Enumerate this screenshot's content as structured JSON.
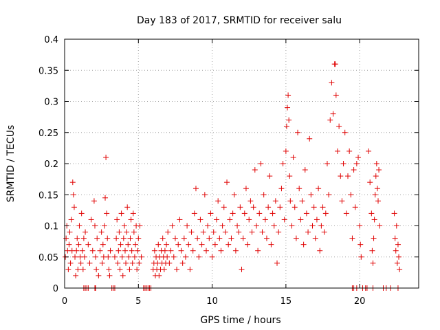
{
  "chart_data": {
    "type": "scatter",
    "title": "Day 183 of 2017, SRMTID for receiver salu",
    "xlabel": "GPS time / hours",
    "ylabel": "SRMTID / TECUs",
    "xlim": [
      0,
      24
    ],
    "ylim": [
      0,
      0.4
    ],
    "xticks": [
      0,
      5,
      10,
      15,
      20
    ],
    "xtick_labels": [
      "0",
      "5",
      "10",
      "15",
      "20"
    ],
    "yticks": [
      0,
      0.05,
      0.1,
      0.15,
      0.2,
      0.25,
      0.3,
      0.35,
      0.4
    ],
    "ytick_labels": [
      "0",
      "0.05",
      "0.1",
      "0.15",
      "0.2",
      "0.25",
      "0.3",
      "0.35",
      "0.4"
    ],
    "grid": true,
    "marker": "+",
    "color": "#e00000",
    "series": [
      {
        "name": "SRMTID",
        "points": [
          [
            0.05,
            0.05
          ],
          [
            0.1,
            0.08
          ],
          [
            0.15,
            0.1
          ],
          [
            0.2,
            0.06
          ],
          [
            0.25,
            0.03
          ],
          [
            0.3,
            0.07
          ],
          [
            0.35,
            0.09
          ],
          [
            0.4,
            0.04
          ],
          [
            0.45,
            0.11
          ],
          [
            0.5,
            0.06
          ],
          [
            0.55,
            0.17
          ],
          [
            0.6,
            0.15
          ],
          [
            0.65,
            0.13
          ],
          [
            0.7,
            0.05
          ],
          [
            0.75,
            0.02
          ],
          [
            0.8,
            0.06
          ],
          [
            0.85,
            0.08
          ],
          [
            0.9,
            0.03
          ],
          [
            0.95,
            0.07
          ],
          [
            1.0,
            0.1
          ],
          [
            1.05,
            0.05
          ],
          [
            1.1,
            0.04
          ],
          [
            1.15,
            0.12
          ],
          [
            1.2,
            0.06
          ],
          [
            1.25,
            0.03
          ],
          [
            1.3,
            0.08
          ],
          [
            1.35,
            0.05
          ],
          [
            1.4,
            0.09
          ],
          [
            1.6,
            0.07
          ],
          [
            1.7,
            0.04
          ],
          [
            1.8,
            0.11
          ],
          [
            1.9,
            0.06
          ],
          [
            2.0,
            0.14
          ],
          [
            2.05,
            0.1
          ],
          [
            2.1,
            0.05
          ],
          [
            2.15,
            0.03
          ],
          [
            2.2,
            0.08
          ],
          [
            2.3,
            0.02
          ],
          [
            2.4,
            0.06
          ],
          [
            2.5,
            0.09
          ],
          [
            2.55,
            0.04
          ],
          [
            2.6,
            0.07
          ],
          [
            2.65,
            0.05
          ],
          [
            2.7,
            0.1
          ],
          [
            2.75,
            0.145
          ],
          [
            2.8,
            0.21
          ],
          [
            2.85,
            0.12
          ],
          [
            2.9,
            0.08
          ],
          [
            2.95,
            0.05
          ],
          [
            3.0,
            0.03
          ],
          [
            3.05,
            0.02
          ],
          [
            3.1,
            0.06
          ],
          [
            3.4,
            0.05
          ],
          [
            3.5,
            0.08
          ],
          [
            3.55,
            0.11
          ],
          [
            3.6,
            0.04
          ],
          [
            3.65,
            0.06
          ],
          [
            3.7,
            0.09
          ],
          [
            3.75,
            0.03
          ],
          [
            3.8,
            0.07
          ],
          [
            3.85,
            0.12
          ],
          [
            3.9,
            0.05
          ],
          [
            3.95,
            0.02
          ],
          [
            4.0,
            0.08
          ],
          [
            4.05,
            0.1
          ],
          [
            4.1,
            0.06
          ],
          [
            4.15,
            0.04
          ],
          [
            4.2,
            0.09
          ],
          [
            4.25,
            0.13
          ],
          [
            4.3,
            0.07
          ],
          [
            4.35,
            0.05
          ],
          [
            4.4,
            0.03
          ],
          [
            4.45,
            0.08
          ],
          [
            4.5,
            0.11
          ],
          [
            4.55,
            0.06
          ],
          [
            4.6,
            0.04
          ],
          [
            4.65,
            0.12
          ],
          [
            4.7,
            0.09
          ],
          [
            4.75,
            0.05
          ],
          [
            4.8,
            0.07
          ],
          [
            4.85,
            0.1
          ],
          [
            4.9,
            0.03
          ],
          [
            4.95,
            0.06
          ],
          [
            5.0,
            0.08
          ],
          [
            5.05,
            0.04
          ],
          [
            5.1,
            0.1
          ],
          [
            5.2,
            0.05
          ],
          [
            6.0,
            0.03
          ],
          [
            6.05,
            0.04
          ],
          [
            6.1,
            0.06
          ],
          [
            6.15,
            0.02
          ],
          [
            6.2,
            0.05
          ],
          [
            6.25,
            0.03
          ],
          [
            6.3,
            0.04
          ],
          [
            6.35,
            0.07
          ],
          [
            6.4,
            0.02
          ],
          [
            6.45,
            0.05
          ],
          [
            6.5,
            0.03
          ],
          [
            6.55,
            0.06
          ],
          [
            6.6,
            0.04
          ],
          [
            6.65,
            0.08
          ],
          [
            6.7,
            0.05
          ],
          [
            6.75,
            0.03
          ],
          [
            6.8,
            0.06
          ],
          [
            6.85,
            0.04
          ],
          [
            6.9,
            0.07
          ],
          [
            6.95,
            0.05
          ],
          [
            7.0,
            0.09
          ],
          [
            7.1,
            0.04
          ],
          [
            7.2,
            0.06
          ],
          [
            7.3,
            0.1
          ],
          [
            7.4,
            0.05
          ],
          [
            7.5,
            0.08
          ],
          [
            7.6,
            0.03
          ],
          [
            7.7,
            0.07
          ],
          [
            7.8,
            0.11
          ],
          [
            7.9,
            0.06
          ],
          [
            8.0,
            0.04
          ],
          [
            8.1,
            0.08
          ],
          [
            8.2,
            0.05
          ],
          [
            8.3,
            0.1
          ],
          [
            8.4,
            0.07
          ],
          [
            8.5,
            0.03
          ],
          [
            8.6,
            0.09
          ],
          [
            8.7,
            0.06
          ],
          [
            8.8,
            0.12
          ],
          [
            8.9,
            0.16
          ],
          [
            9.0,
            0.08
          ],
          [
            9.1,
            0.05
          ],
          [
            9.2,
            0.11
          ],
          [
            9.3,
            0.07
          ],
          [
            9.4,
            0.09
          ],
          [
            9.5,
            0.15
          ],
          [
            9.6,
            0.06
          ],
          [
            9.7,
            0.1
          ],
          [
            9.8,
            0.08
          ],
          [
            9.9,
            0.12
          ],
          [
            10.0,
            0.05
          ],
          [
            10.1,
            0.09
          ],
          [
            10.2,
            0.07
          ],
          [
            10.3,
            0.11
          ],
          [
            10.4,
            0.14
          ],
          [
            10.5,
            0.08
          ],
          [
            10.6,
            0.06
          ],
          [
            10.7,
            0.1
          ],
          [
            10.8,
            0.13
          ],
          [
            10.9,
            0.09
          ],
          [
            11.0,
            0.17
          ],
          [
            11.1,
            0.07
          ],
          [
            11.2,
            0.11
          ],
          [
            11.3,
            0.08
          ],
          [
            11.4,
            0.12
          ],
          [
            11.5,
            0.15
          ],
          [
            11.6,
            0.06
          ],
          [
            11.7,
            0.1
          ],
          [
            11.8,
            0.09
          ],
          [
            11.9,
            0.13
          ],
          [
            12.0,
            0.03
          ],
          [
            12.1,
            0.08
          ],
          [
            12.2,
            0.12
          ],
          [
            12.3,
            0.16
          ],
          [
            12.4,
            0.07
          ],
          [
            12.5,
            0.11
          ],
          [
            12.6,
            0.14
          ],
          [
            12.7,
            0.09
          ],
          [
            12.8,
            0.13
          ],
          [
            12.9,
            0.19
          ],
          [
            13.0,
            0.1
          ],
          [
            13.1,
            0.06
          ],
          [
            13.2,
            0.12
          ],
          [
            13.3,
            0.2
          ],
          [
            13.4,
            0.09
          ],
          [
            13.5,
            0.15
          ],
          [
            13.6,
            0.11
          ],
          [
            13.7,
            0.08
          ],
          [
            13.8,
            0.13
          ],
          [
            13.9,
            0.18
          ],
          [
            14.0,
            0.07
          ],
          [
            14.1,
            0.12
          ],
          [
            14.2,
            0.1
          ],
          [
            14.3,
            0.14
          ],
          [
            14.4,
            0.04
          ],
          [
            14.5,
            0.09
          ],
          [
            14.6,
            0.13
          ],
          [
            14.7,
            0.16
          ],
          [
            14.8,
            0.2
          ],
          [
            14.9,
            0.11
          ],
          [
            15.0,
            0.22
          ],
          [
            15.05,
            0.26
          ],
          [
            15.1,
            0.29
          ],
          [
            15.15,
            0.31
          ],
          [
            15.2,
            0.27
          ],
          [
            15.25,
            0.18
          ],
          [
            15.3,
            0.14
          ],
          [
            15.4,
            0.1
          ],
          [
            15.5,
            0.21
          ],
          [
            15.6,
            0.13
          ],
          [
            15.7,
            0.08
          ],
          [
            15.8,
            0.25
          ],
          [
            15.9,
            0.16
          ],
          [
            16.0,
            0.11
          ],
          [
            16.1,
            0.14
          ],
          [
            16.2,
            0.07
          ],
          [
            16.3,
            0.19
          ],
          [
            16.4,
            0.12
          ],
          [
            16.5,
            0.09
          ],
          [
            16.6,
            0.24
          ],
          [
            16.7,
            0.15
          ],
          [
            16.8,
            0.1
          ],
          [
            16.9,
            0.13
          ],
          [
            17.0,
            0.08
          ],
          [
            17.1,
            0.11
          ],
          [
            17.2,
            0.16
          ],
          [
            17.3,
            0.06
          ],
          [
            17.4,
            0.1
          ],
          [
            17.5,
            0.13
          ],
          [
            17.6,
            0.09
          ],
          [
            17.7,
            0.12
          ],
          [
            17.8,
            0.2
          ],
          [
            17.9,
            0.15
          ],
          [
            18.0,
            0.27
          ],
          [
            18.1,
            0.33
          ],
          [
            18.2,
            0.28
          ],
          [
            18.3,
            0.36
          ],
          [
            18.35,
            0.36
          ],
          [
            18.4,
            0.31
          ],
          [
            18.5,
            0.22
          ],
          [
            18.6,
            0.26
          ],
          [
            18.7,
            0.18
          ],
          [
            18.8,
            0.14
          ],
          [
            18.9,
            0.2
          ],
          [
            19.0,
            0.25
          ],
          [
            19.1,
            0.12
          ],
          [
            19.2,
            0.18
          ],
          [
            19.3,
            0.22
          ],
          [
            19.4,
            0.15
          ],
          [
            19.5,
            0.08
          ],
          [
            19.6,
            0.19
          ],
          [
            19.7,
            0.13
          ],
          [
            19.8,
            0.2
          ],
          [
            19.9,
            0.21
          ],
          [
            20.0,
            0.1
          ],
          [
            20.05,
            0.07
          ],
          [
            20.1,
            0.05
          ],
          [
            20.6,
            0.22
          ],
          [
            20.7,
            0.17
          ],
          [
            20.8,
            0.12
          ],
          [
            20.85,
            0.06
          ],
          [
            20.9,
            0.04
          ],
          [
            20.95,
            0.08
          ],
          [
            21.0,
            0.11
          ],
          [
            21.05,
            0.15
          ],
          [
            21.1,
            0.18
          ],
          [
            21.15,
            0.2
          ],
          [
            21.2,
            0.16
          ],
          [
            21.25,
            0.14
          ],
          [
            21.3,
            0.19
          ],
          [
            21.35,
            0.1
          ],
          [
            22.35,
            0.12
          ],
          [
            22.4,
            0.08
          ],
          [
            22.45,
            0.06
          ],
          [
            22.5,
            0.1
          ],
          [
            22.55,
            0.04
          ],
          [
            22.6,
            0.07
          ],
          [
            22.65,
            0.05
          ],
          [
            22.7,
            0.03
          ],
          [
            1.3,
            0
          ],
          [
            1.4,
            0
          ],
          [
            1.5,
            0
          ],
          [
            1.6,
            0
          ],
          [
            2.05,
            0
          ],
          [
            2.1,
            0
          ],
          [
            3.2,
            0
          ],
          [
            3.3,
            0
          ],
          [
            3.4,
            0
          ],
          [
            5.35,
            0
          ],
          [
            5.45,
            0
          ],
          [
            5.55,
            0
          ],
          [
            5.65,
            0
          ],
          [
            5.75,
            0
          ],
          [
            5.85,
            0
          ],
          [
            19.5,
            0
          ],
          [
            19.6,
            0
          ],
          [
            19.8,
            0
          ],
          [
            20.2,
            0
          ],
          [
            20.4,
            0
          ],
          [
            20.5,
            0
          ],
          [
            20.9,
            0
          ],
          [
            21.6,
            0
          ],
          [
            21.8,
            0
          ],
          [
            22.1,
            0
          ],
          [
            22.6,
            0
          ]
        ]
      }
    ]
  }
}
